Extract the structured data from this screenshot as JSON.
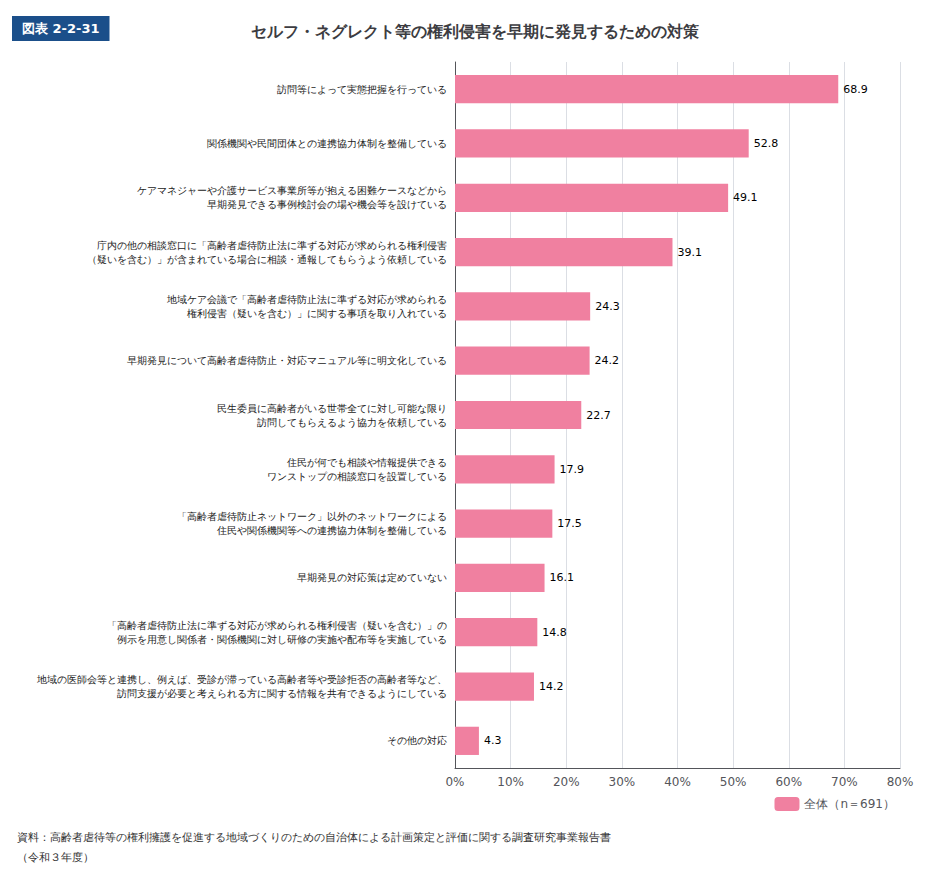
{
  "chart_data": {
    "type": "bar",
    "orientation": "horizontal",
    "title": "セルフ・ネグレクト等の権利侵害を早期に発見するための対策",
    "annotations": [
      "図表 2-2-31",
      "資料：高齢者虐待等の権利擁護を促進する地域づくりのための自治体による計画策定と評価に関する調査研究事業報告書",
      "（令和３年度）"
    ],
    "categories": [
      "訪問等によって実態把握を行っている",
      "関係機関や民間団体との連携協力体制を整備している",
      "ケアマネジャーや介護サービス事業所等が抱える困難ケースなどから\n早期発見できる事例検討会の場や機会等を設けている",
      "庁内の他の相談窓口に「高齢者虐待防止法に準ずる対応が求められる権利侵害\n（疑いを含む）」が含まれている場合に相談・通報してもらうよう依頼している",
      "地域ケア会議で「高齢者虐待防止法に準ずる対応が求められる\n権利侵害（疑いを含む）」に関する事項を取り入れている",
      "早期発見について高齢者虐待防止・対応マニュアル等に明文化している",
      "民生委員に高齢者がいる世帯全てに対し可能な限り\n訪問してもらえるよう協力を依頼している",
      "住民が何でも相談や情報提供できる\nワンストップの相談窓口を設置している",
      "「高齢者虐待防止ネットワーク」以外のネットワークによる\n住民や関係機関等への連携協力体制を整備している",
      "早期発見の対応策は定めていない",
      "「高齢者虐待防止法に準ずる対応が求められる権利侵害（疑いを含む）」の\n例示を用意し関係者・関係機関に対し研修の実施や配布等を実施している",
      "地域の医師会等と連携し、例えば、受診が滞っている高齢者等や受診拒否の高齢者等など、\n訪問支援が必要と考えられる方に関する情報を共有できるようにしている",
      "その他の対応"
    ],
    "series": [
      {
        "name": "全体（n＝691）",
        "color": "#F080A0",
        "values": [
          68.9,
          52.8,
          49.1,
          39.1,
          24.3,
          24.2,
          22.7,
          17.9,
          17.5,
          16.1,
          14.8,
          14.2,
          4.3
        ]
      }
    ],
    "xlim": [
      0,
      80
    ],
    "xticks": [
      {
        "value": 0,
        "label": "0%"
      },
      {
        "value": 10,
        "label": "10%"
      },
      {
        "value": 20,
        "label": "20%"
      },
      {
        "value": 30,
        "label": "30%"
      },
      {
        "value": 40,
        "label": "40%"
      },
      {
        "value": 50,
        "label": "50%"
      },
      {
        "value": 60,
        "label": "60%"
      },
      {
        "value": 70,
        "label": "70%"
      },
      {
        "value": 80,
        "label": "80%"
      }
    ],
    "grid": true,
    "legend": "lower right",
    "data_labels": true
  }
}
